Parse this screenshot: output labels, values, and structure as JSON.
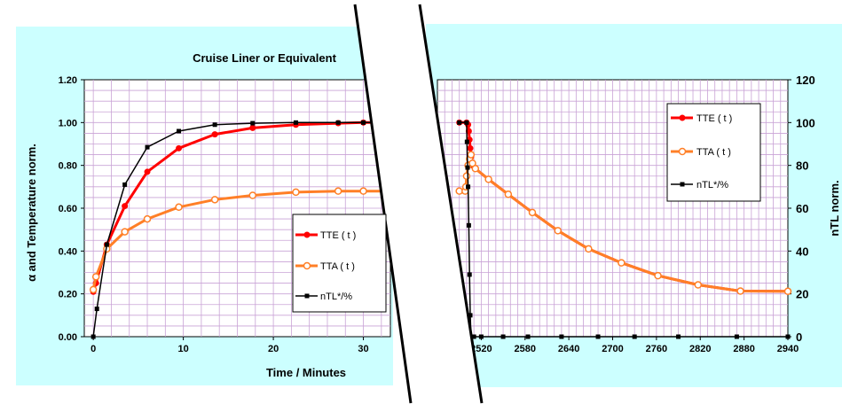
{
  "colors": {
    "tte": "#ff0000",
    "tta": "#ff7f27",
    "ntl": "#000000",
    "background": "#ccffff",
    "grid": "#c9a3d6"
  },
  "chart_data": [
    {
      "type": "line",
      "title": "Cruise Liner or Equivalent",
      "xlabel": "Time / Minutes",
      "ylabel": "α and Temperature norm.",
      "xlim": [
        -1,
        33
      ],
      "ylim": [
        0,
        1.2
      ],
      "x_ticks": [
        0,
        10,
        20,
        30
      ],
      "y_ticks": [
        "0.00",
        "0.20",
        "0.40",
        "0.60",
        "0.80",
        "1.00",
        "1.20"
      ],
      "grid": true,
      "legend": {
        "placement": "bottom-right",
        "entries": [
          "TTE ( t )",
          "TTA ( t )",
          "nTL*/%"
        ]
      },
      "series": [
        {
          "name": "TTE ( t )",
          "x": [
            0,
            0.3,
            1.5,
            3.5,
            6,
            9.5,
            13.5,
            17.7,
            22.5,
            27.2,
            30,
            33
          ],
          "y": [
            0.21,
            0.25,
            0.43,
            0.61,
            0.77,
            0.88,
            0.945,
            0.975,
            0.99,
            0.997,
            1.0,
            1.0
          ]
        },
        {
          "name": "TTA ( t )",
          "x": [
            0,
            0.3,
            1.5,
            3.5,
            6,
            9.5,
            13.5,
            17.7,
            22.5,
            27.2,
            30,
            33
          ],
          "y": [
            0.22,
            0.28,
            0.41,
            0.49,
            0.55,
            0.605,
            0.64,
            0.66,
            0.675,
            0.68,
            0.68,
            0.68
          ]
        },
        {
          "name": "nTL*/%",
          "x": [
            0,
            0.4,
            1.5,
            3.5,
            6,
            9.5,
            13.5,
            17.7,
            22.5,
            27.2,
            30,
            33
          ],
          "y": [
            0,
            0.13,
            0.43,
            0.71,
            0.885,
            0.96,
            0.99,
            0.997,
            1.0,
            1.0,
            1.0,
            1.0
          ]
        }
      ]
    },
    {
      "type": "line",
      "xlabel": "",
      "ylabel": "nTL norm.",
      "xlim": [
        2460,
        2940
      ],
      "ylim": [
        0,
        120
      ],
      "x_ticks": [
        2520,
        2580,
        2640,
        2700,
        2760,
        2820,
        2880,
        2940
      ],
      "y_ticks": [
        0,
        20,
        40,
        60,
        80,
        100,
        120
      ],
      "grid": true,
      "legend": {
        "placement": "top-right",
        "entries": [
          "TTE ( t )",
          "TTA ( t )",
          "nTL*/%"
        ]
      },
      "series": [
        {
          "name": "TTE ( t )",
          "x": [
            2490,
            2500,
            2502,
            2503,
            2504,
            2505,
            2506,
            2508,
            2512,
            2530,
            2557,
            2590,
            2625,
            2667,
            2712,
            2762,
            2817,
            2875,
            2940
          ],
          "y": [
            100,
            100,
            99,
            96,
            92,
            88,
            84,
            80,
            78.5,
            73.5,
            66.5,
            58,
            49.5,
            41,
            34.5,
            28.5,
            24.2,
            21.3,
            21.2
          ]
        },
        {
          "name": "TTA ( t )",
          "x": [
            2490,
            2498,
            2499,
            2500,
            2502,
            2504,
            2506,
            2508,
            2512,
            2530,
            2557,
            2590,
            2625,
            2667,
            2712,
            2762,
            2817,
            2875,
            2940
          ],
          "y": [
            68,
            68,
            70,
            75,
            80,
            83,
            85,
            81,
            78.5,
            73.5,
            66.5,
            58,
            49.5,
            41,
            34.5,
            28.5,
            24.2,
            21.3,
            21.2
          ]
        },
        {
          "name": "nTL*/%",
          "x": [
            2490,
            2500,
            2500.5,
            2501.3,
            2502,
            2503,
            2504,
            2505,
            2506,
            2510,
            2520,
            2550,
            2584,
            2630,
            2680,
            2730,
            2790,
            2870,
            2940
          ],
          "y": [
            100,
            100,
            91,
            79,
            70,
            52,
            29,
            10,
            0,
            0,
            0,
            0,
            0,
            0,
            0,
            0,
            0,
            0,
            0
          ]
        }
      ]
    }
  ]
}
